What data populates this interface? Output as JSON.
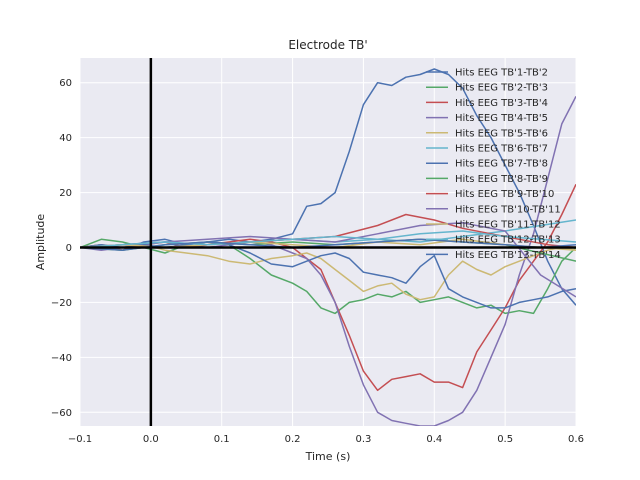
{
  "chart_data": {
    "type": "line",
    "title": "Electrode TB'",
    "xlabel": "Time (s)",
    "ylabel": "Amplitude",
    "xlim": [
      -0.1,
      0.6
    ],
    "ylim": [
      -65,
      69
    ],
    "xticks": [
      -0.1,
      0.0,
      0.1,
      0.2,
      0.3,
      0.4,
      0.5,
      0.6
    ],
    "xtick_labels": [
      "−0.1",
      "0.0",
      "0.1",
      "0.2",
      "0.3",
      "0.4",
      "0.5",
      "0.6"
    ],
    "yticks": [
      -60,
      -40,
      -20,
      0,
      20,
      40,
      60
    ],
    "ytick_labels": [
      "−60",
      "−40",
      "−20",
      "0",
      "20",
      "40",
      "60"
    ],
    "grid": true,
    "background": "#eaeaf2",
    "legend_position": "top-right",
    "reference_lines": [
      {
        "orientation": "vertical",
        "value": 0.0,
        "color": "#000000"
      },
      {
        "orientation": "horizontal",
        "value": 0.0,
        "color": "#000000"
      }
    ],
    "series": [
      {
        "name": "Hits EEG TB'1-TB'2",
        "color": "#4c72b0",
        "x": [
          -0.1,
          -0.07,
          -0.04,
          -0.01,
          0.02,
          0.05,
          0.08,
          0.11,
          0.14,
          0.17,
          0.2,
          0.21,
          0.22,
          0.24,
          0.26,
          0.28,
          0.3,
          0.32,
          0.34,
          0.36,
          0.38,
          0.4,
          0.42,
          0.44,
          0.46,
          0.48,
          0.5,
          0.52,
          0.54,
          0.56,
          0.58,
          0.6
        ],
        "y": [
          0,
          1,
          -1,
          2,
          3,
          1,
          2,
          3,
          2,
          3,
          5,
          10,
          15,
          16,
          20,
          35,
          52,
          60,
          59,
          62,
          63,
          65,
          63,
          58,
          48,
          40,
          30,
          20,
          8,
          -5,
          -15,
          -21
        ]
      },
      {
        "name": "Hits EEG TB'2-TB'3",
        "color": "#55a868",
        "x": [
          -0.1,
          -0.07,
          -0.04,
          -0.01,
          0.02,
          0.05,
          0.08,
          0.11,
          0.14,
          0.17,
          0.2,
          0.22,
          0.24,
          0.26,
          0.28,
          0.3,
          0.32,
          0.34,
          0.36,
          0.38,
          0.4,
          0.42,
          0.44,
          0.46,
          0.48,
          0.5,
          0.52,
          0.54,
          0.56,
          0.58,
          0.6
        ],
        "y": [
          0,
          3,
          2,
          0,
          -2,
          1,
          2,
          1,
          -4,
          -10,
          -13,
          -16,
          -22,
          -24,
          -20,
          -19,
          -17,
          -18,
          -16,
          -20,
          -19,
          -18,
          -20,
          -22,
          -21,
          -24,
          -23,
          -24,
          -15,
          -5,
          0
        ]
      },
      {
        "name": "Hits EEG TB'3-TB'4",
        "color": "#c44e52",
        "x": [
          -0.1,
          -0.07,
          -0.04,
          -0.01,
          0.02,
          0.05,
          0.08,
          0.11,
          0.14,
          0.17,
          0.2,
          0.22,
          0.24,
          0.26,
          0.28,
          0.3,
          0.32,
          0.34,
          0.36,
          0.38,
          0.4,
          0.42,
          0.44,
          0.46,
          0.48,
          0.5,
          0.52,
          0.54,
          0.56,
          0.58,
          0.6
        ],
        "y": [
          0,
          1,
          -1,
          1,
          2,
          0,
          1,
          2,
          3,
          2,
          0,
          -4,
          -8,
          -20,
          -32,
          -45,
          -52,
          -48,
          -47,
          -46,
          -49,
          -49,
          -51,
          -38,
          -30,
          -22,
          -12,
          -5,
          2,
          12,
          23
        ]
      },
      {
        "name": "Hits EEG TB'4-TB'5",
        "color": "#8172b2",
        "x": [
          -0.1,
          -0.07,
          -0.04,
          -0.01,
          0.02,
          0.05,
          0.08,
          0.11,
          0.14,
          0.17,
          0.2,
          0.22,
          0.24,
          0.26,
          0.28,
          0.3,
          0.32,
          0.34,
          0.36,
          0.38,
          0.4,
          0.42,
          0.44,
          0.46,
          0.48,
          0.5,
          0.52,
          0.54,
          0.56,
          0.58,
          0.6
        ],
        "y": [
          0,
          -1,
          0,
          1,
          2,
          1,
          0,
          1,
          2,
          1,
          -2,
          -4,
          -10,
          -20,
          -36,
          -50,
          -60,
          -63,
          -64,
          -65,
          -65,
          -63,
          -60,
          -52,
          -40,
          -28,
          -10,
          5,
          25,
          45,
          55
        ]
      },
      {
        "name": "Hits EEG TB'5-TB'6",
        "color": "#ccb974",
        "x": [
          -0.1,
          -0.07,
          -0.04,
          -0.01,
          0.02,
          0.05,
          0.08,
          0.11,
          0.14,
          0.17,
          0.2,
          0.22,
          0.24,
          0.26,
          0.28,
          0.3,
          0.32,
          0.34,
          0.36,
          0.38,
          0.4,
          0.42,
          0.44,
          0.46,
          0.48,
          0.5,
          0.52,
          0.54,
          0.56,
          0.58,
          0.6
        ],
        "y": [
          0,
          1,
          0,
          1,
          -1,
          -2,
          -3,
          -5,
          -6,
          -4,
          -3,
          -2,
          -4,
          -8,
          -12,
          -16,
          -14,
          -13,
          -17,
          -19,
          -18,
          -10,
          -5,
          -8,
          -10,
          -7,
          -5,
          -3,
          -1,
          0,
          -1
        ]
      },
      {
        "name": "Hits EEG TB'6-TB'7",
        "color": "#64b5cd",
        "x": [
          -0.1,
          -0.04,
          0.02,
          0.08,
          0.14,
          0.2,
          0.26,
          0.32,
          0.38,
          0.44,
          0.5,
          0.55,
          0.6
        ],
        "y": [
          0,
          1,
          2,
          1,
          2,
          3,
          2,
          3,
          2,
          4,
          6,
          8,
          10
        ]
      },
      {
        "name": "Hits EEG TB'7-TB'8",
        "color": "#4c72b0",
        "x": [
          -0.1,
          -0.07,
          -0.04,
          -0.01,
          0.02,
          0.05,
          0.08,
          0.11,
          0.14,
          0.17,
          0.2,
          0.22,
          0.24,
          0.26,
          0.28,
          0.3,
          0.32,
          0.34,
          0.36,
          0.38,
          0.4,
          0.42,
          0.44,
          0.46,
          0.48,
          0.5,
          0.52,
          0.54,
          0.56,
          0.58,
          0.6
        ],
        "y": [
          0,
          1,
          0,
          1,
          0,
          1,
          2,
          1,
          -2,
          -6,
          -7,
          -5,
          -3,
          -2,
          -4,
          -9,
          -10,
          -11,
          -13,
          -7,
          -3,
          -15,
          -18,
          -20,
          -22,
          -22,
          -20,
          -19,
          -18,
          -16,
          -15
        ]
      },
      {
        "name": "Hits EEG TB'8-TB'9",
        "color": "#55a868",
        "x": [
          -0.1,
          -0.04,
          0.02,
          0.08,
          0.14,
          0.2,
          0.26,
          0.32,
          0.38,
          0.44,
          0.5,
          0.55,
          0.6
        ],
        "y": [
          0,
          -1,
          1,
          2,
          1,
          2,
          1,
          2,
          3,
          2,
          1,
          -2,
          -5
        ]
      },
      {
        "name": "Hits EEG TB'9-TB'10",
        "color": "#c44e52",
        "x": [
          -0.1,
          -0.04,
          0.02,
          0.08,
          0.14,
          0.2,
          0.26,
          0.32,
          0.36,
          0.4,
          0.44,
          0.48,
          0.52,
          0.56,
          0.6
        ],
        "y": [
          0,
          1,
          0,
          1,
          2,
          3,
          4,
          8,
          12,
          10,
          7,
          5,
          3,
          1,
          0
        ]
      },
      {
        "name": "Hits EEG TB'10-TB'11",
        "color": "#8172b2",
        "x": [
          -0.1,
          -0.04,
          0.02,
          0.08,
          0.14,
          0.2,
          0.26,
          0.32,
          0.38,
          0.44,
          0.5,
          0.55,
          0.6
        ],
        "y": [
          0,
          1,
          2,
          3,
          4,
          3,
          2,
          5,
          8,
          9,
          6,
          -10,
          -18
        ]
      },
      {
        "name": "Hits EEG TB'11-TB'12",
        "color": "#ccb974",
        "x": [
          -0.1,
          -0.04,
          0.02,
          0.08,
          0.14,
          0.2,
          0.26,
          0.32,
          0.38,
          0.44,
          0.5,
          0.55,
          0.6
        ],
        "y": [
          0,
          1,
          0,
          1,
          2,
          1,
          0,
          2,
          1,
          3,
          1,
          0,
          -1
        ]
      },
      {
        "name": "Hits EEG TB'12-TB'13",
        "color": "#64b5cd",
        "x": [
          -0.1,
          -0.04,
          0.02,
          0.08,
          0.14,
          0.2,
          0.26,
          0.32,
          0.38,
          0.44,
          0.5,
          0.55,
          0.6
        ],
        "y": [
          0,
          1,
          2,
          1,
          2,
          3,
          4,
          3,
          5,
          6,
          4,
          3,
          2
        ]
      },
      {
        "name": "Hits EEG TB'13-TB'14",
        "color": "#4c72b0",
        "x": [
          -0.1,
          -0.04,
          0.02,
          0.08,
          0.14,
          0.2,
          0.26,
          0.32,
          0.38,
          0.44,
          0.5,
          0.55,
          0.6
        ],
        "y": [
          0,
          -1,
          1,
          2,
          1,
          0,
          1,
          2,
          3,
          2,
          1,
          0,
          1
        ]
      }
    ]
  }
}
